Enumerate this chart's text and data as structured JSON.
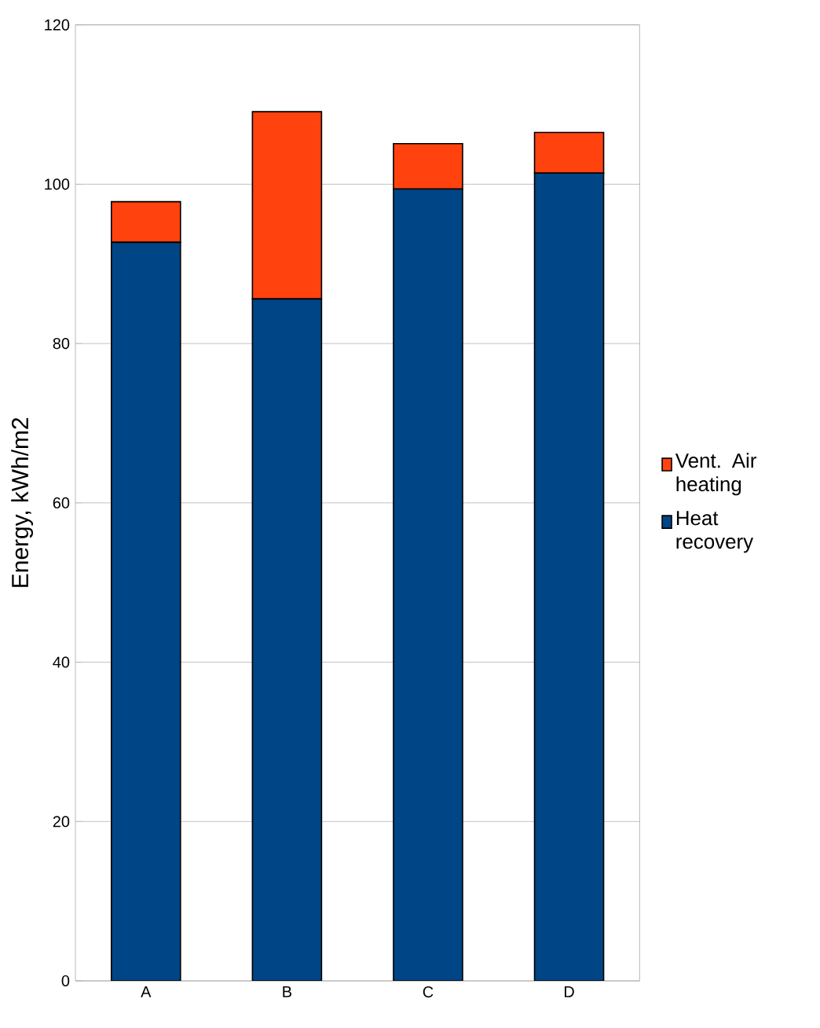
{
  "chart_data": {
    "type": "bar",
    "stacked": true,
    "ylabel": "Energy, kWh/m2",
    "categories": [
      "A",
      "B",
      "C",
      "D"
    ],
    "series": [
      {
        "name": "Heat recovery",
        "color": "#004586",
        "values": [
          92.7,
          85.6,
          99.4,
          101.4
        ]
      },
      {
        "name": "Vent. Air heating",
        "color": "#ff420e",
        "values": [
          5.1,
          23.5,
          5.7,
          5.1
        ]
      }
    ],
    "ylim": [
      0,
      120
    ],
    "yticks": [
      0,
      20,
      40,
      60,
      80,
      100,
      120
    ],
    "grid": "y",
    "legend": "right"
  }
}
